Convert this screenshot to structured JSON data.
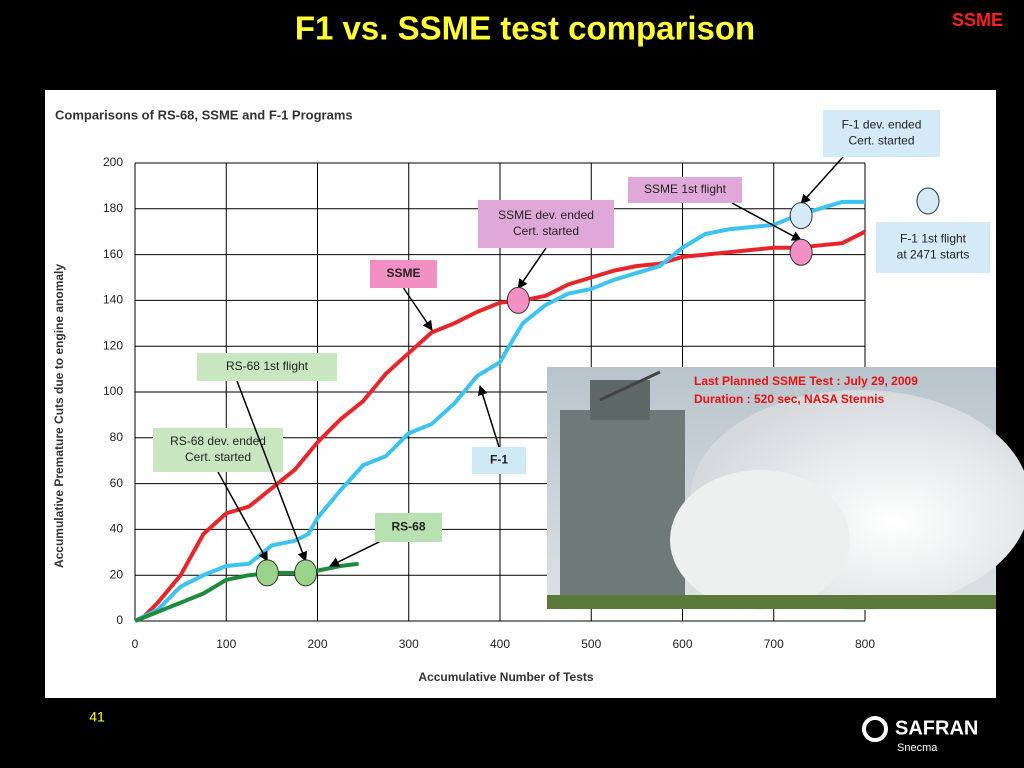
{
  "header": {
    "title": "F1 vs. SSME test comparison",
    "tag": "SSME"
  },
  "chart_data": {
    "type": "line",
    "title": "Comparisons of RS-68, SSME and F-1 Programs",
    "x_label": "Accumulative Number of Tests",
    "y_label": "Accumulative Premature Cuts due to engine anomaly",
    "xlim": [
      0,
      800
    ],
    "xticks": [
      0,
      100,
      200,
      300,
      400,
      500,
      600,
      700,
      800
    ],
    "ylim": [
      0,
      200
    ],
    "yticks": [
      0,
      20,
      40,
      60,
      80,
      100,
      120,
      140,
      160,
      180,
      200
    ],
    "grid": true,
    "series": [
      {
        "name": "SSME",
        "color": "#e8262a",
        "x": [
          0,
          10,
          25,
          50,
          75,
          100,
          125,
          150,
          175,
          200,
          225,
          250,
          275,
          300,
          325,
          350,
          375,
          400,
          425,
          450,
          475,
          500,
          525,
          550,
          575,
          600,
          625,
          650,
          675,
          700,
          725,
          750,
          775,
          800
        ],
        "values": [
          0,
          2,
          8,
          20,
          38,
          47,
          50,
          58,
          66,
          78,
          88,
          96,
          108,
          117,
          126,
          130,
          135,
          139,
          140,
          142,
          147,
          150,
          153,
          155,
          156,
          159,
          160,
          161,
          162,
          163,
          163,
          164,
          165,
          170
        ]
      },
      {
        "name": "F-1",
        "color": "#3cc3f0",
        "x": [
          0,
          25,
          50,
          75,
          100,
          125,
          150,
          175,
          190,
          200,
          225,
          250,
          275,
          300,
          325,
          350,
          375,
          400,
          410,
          425,
          450,
          475,
          500,
          525,
          550,
          575,
          600,
          625,
          650,
          675,
          700,
          725,
          750,
          775,
          800
        ],
        "values": [
          0,
          5,
          15,
          20,
          24,
          25,
          33,
          35,
          38,
          45,
          57,
          68,
          72,
          82,
          86,
          95,
          107,
          113,
          120,
          130,
          138,
          143,
          145,
          149,
          152,
          155,
          163,
          169,
          171,
          172,
          173,
          177,
          180,
          183,
          183
        ]
      },
      {
        "name": "RS-68",
        "color": "#1e8a3c",
        "x": [
          0,
          25,
          50,
          75,
          100,
          125,
          150,
          175,
          200,
          225,
          245
        ],
        "values": [
          0,
          4,
          8,
          12,
          18,
          20,
          21,
          21,
          22,
          24,
          25
        ]
      }
    ],
    "annotations": [
      {
        "lines": [
          "RS-68 dev. ended",
          "Cert. started"
        ],
        "x": 145,
        "y": 21,
        "color": "#9ad48a"
      },
      {
        "lines": [
          "RS-68 1st flight"
        ],
        "x": 187,
        "y": 21,
        "color": "#9ad48a"
      },
      {
        "lines": [
          "SSME dev. ended",
          "Cert. started"
        ],
        "x": 420,
        "y": 140,
        "color": "#f290c4"
      },
      {
        "lines": [
          "SSME 1st flight"
        ],
        "x": 730,
        "y": 161,
        "color": "#f290c4"
      },
      {
        "lines": [
          "F-1 dev. ended",
          "Cert. started"
        ],
        "x": 730,
        "y": 177,
        "color": "#d4eaf6"
      },
      {
        "lines": [
          "F-1 1st flight",
          "at 2471 starts"
        ],
        "color": "#d4eaf6"
      }
    ]
  },
  "photo_caption": [
    "Last Planned SSME Test : July 29, 2009",
    "Duration : 520 sec, NASA Stennis"
  ],
  "footer": {
    "page": "41",
    "logo": "SAFRAN",
    "sublogo": "Snecma"
  }
}
